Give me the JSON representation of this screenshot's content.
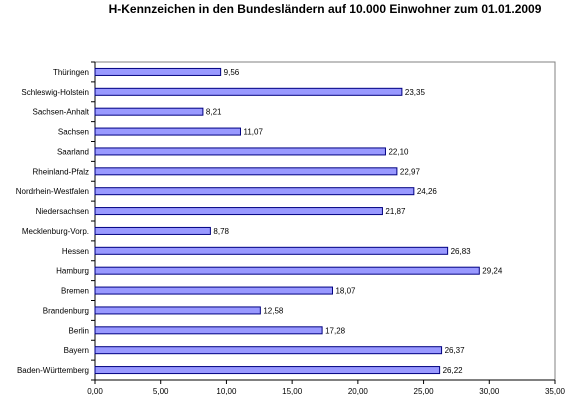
{
  "chart_data": {
    "type": "bar",
    "orientation": "horizontal",
    "title": "H-Kennzeichen in den Bundesländern auf 10.000 Einwohner zum 01.01.2009",
    "xlabel": "",
    "ylabel": "",
    "categories": [
      "Thüringen",
      "Schleswig-Holstein",
      "Sachsen-Anhalt",
      "Sachsen",
      "Saarland",
      "Rheinland-Pfalz",
      "Nordrhein-Westfalen",
      "Niedersachsen",
      "Mecklenburg-Vorp.",
      "Hessen",
      "Hamburg",
      "Bremen",
      "Brandenburg",
      "Berlin",
      "Bayern",
      "Baden-Württemberg"
    ],
    "values": [
      9.56,
      23.35,
      8.21,
      11.07,
      22.1,
      22.97,
      24.26,
      21.87,
      8.78,
      26.83,
      29.24,
      18.07,
      12.58,
      17.28,
      26.37,
      26.22
    ],
    "value_labels": [
      "9,56",
      "23,35",
      "8,21",
      "11,07",
      "22,10",
      "22,97",
      "24,26",
      "21,87",
      "8,78",
      "26,83",
      "29,24",
      "18,07",
      "12,58",
      "17,28",
      "26,37",
      "26,22"
    ],
    "xlim": [
      0,
      35
    ],
    "x_ticks": [
      0,
      5,
      10,
      15,
      20,
      25,
      30,
      35
    ],
    "x_tick_labels": [
      "0,00",
      "5,00",
      "10,00",
      "15,00",
      "20,00",
      "25,00",
      "30,00",
      "35,00"
    ],
    "grid": false,
    "legend": "none",
    "colors": {
      "bar_fill": "#9999ff",
      "bar_stroke": "#000080",
      "frame": "#808080"
    }
  }
}
